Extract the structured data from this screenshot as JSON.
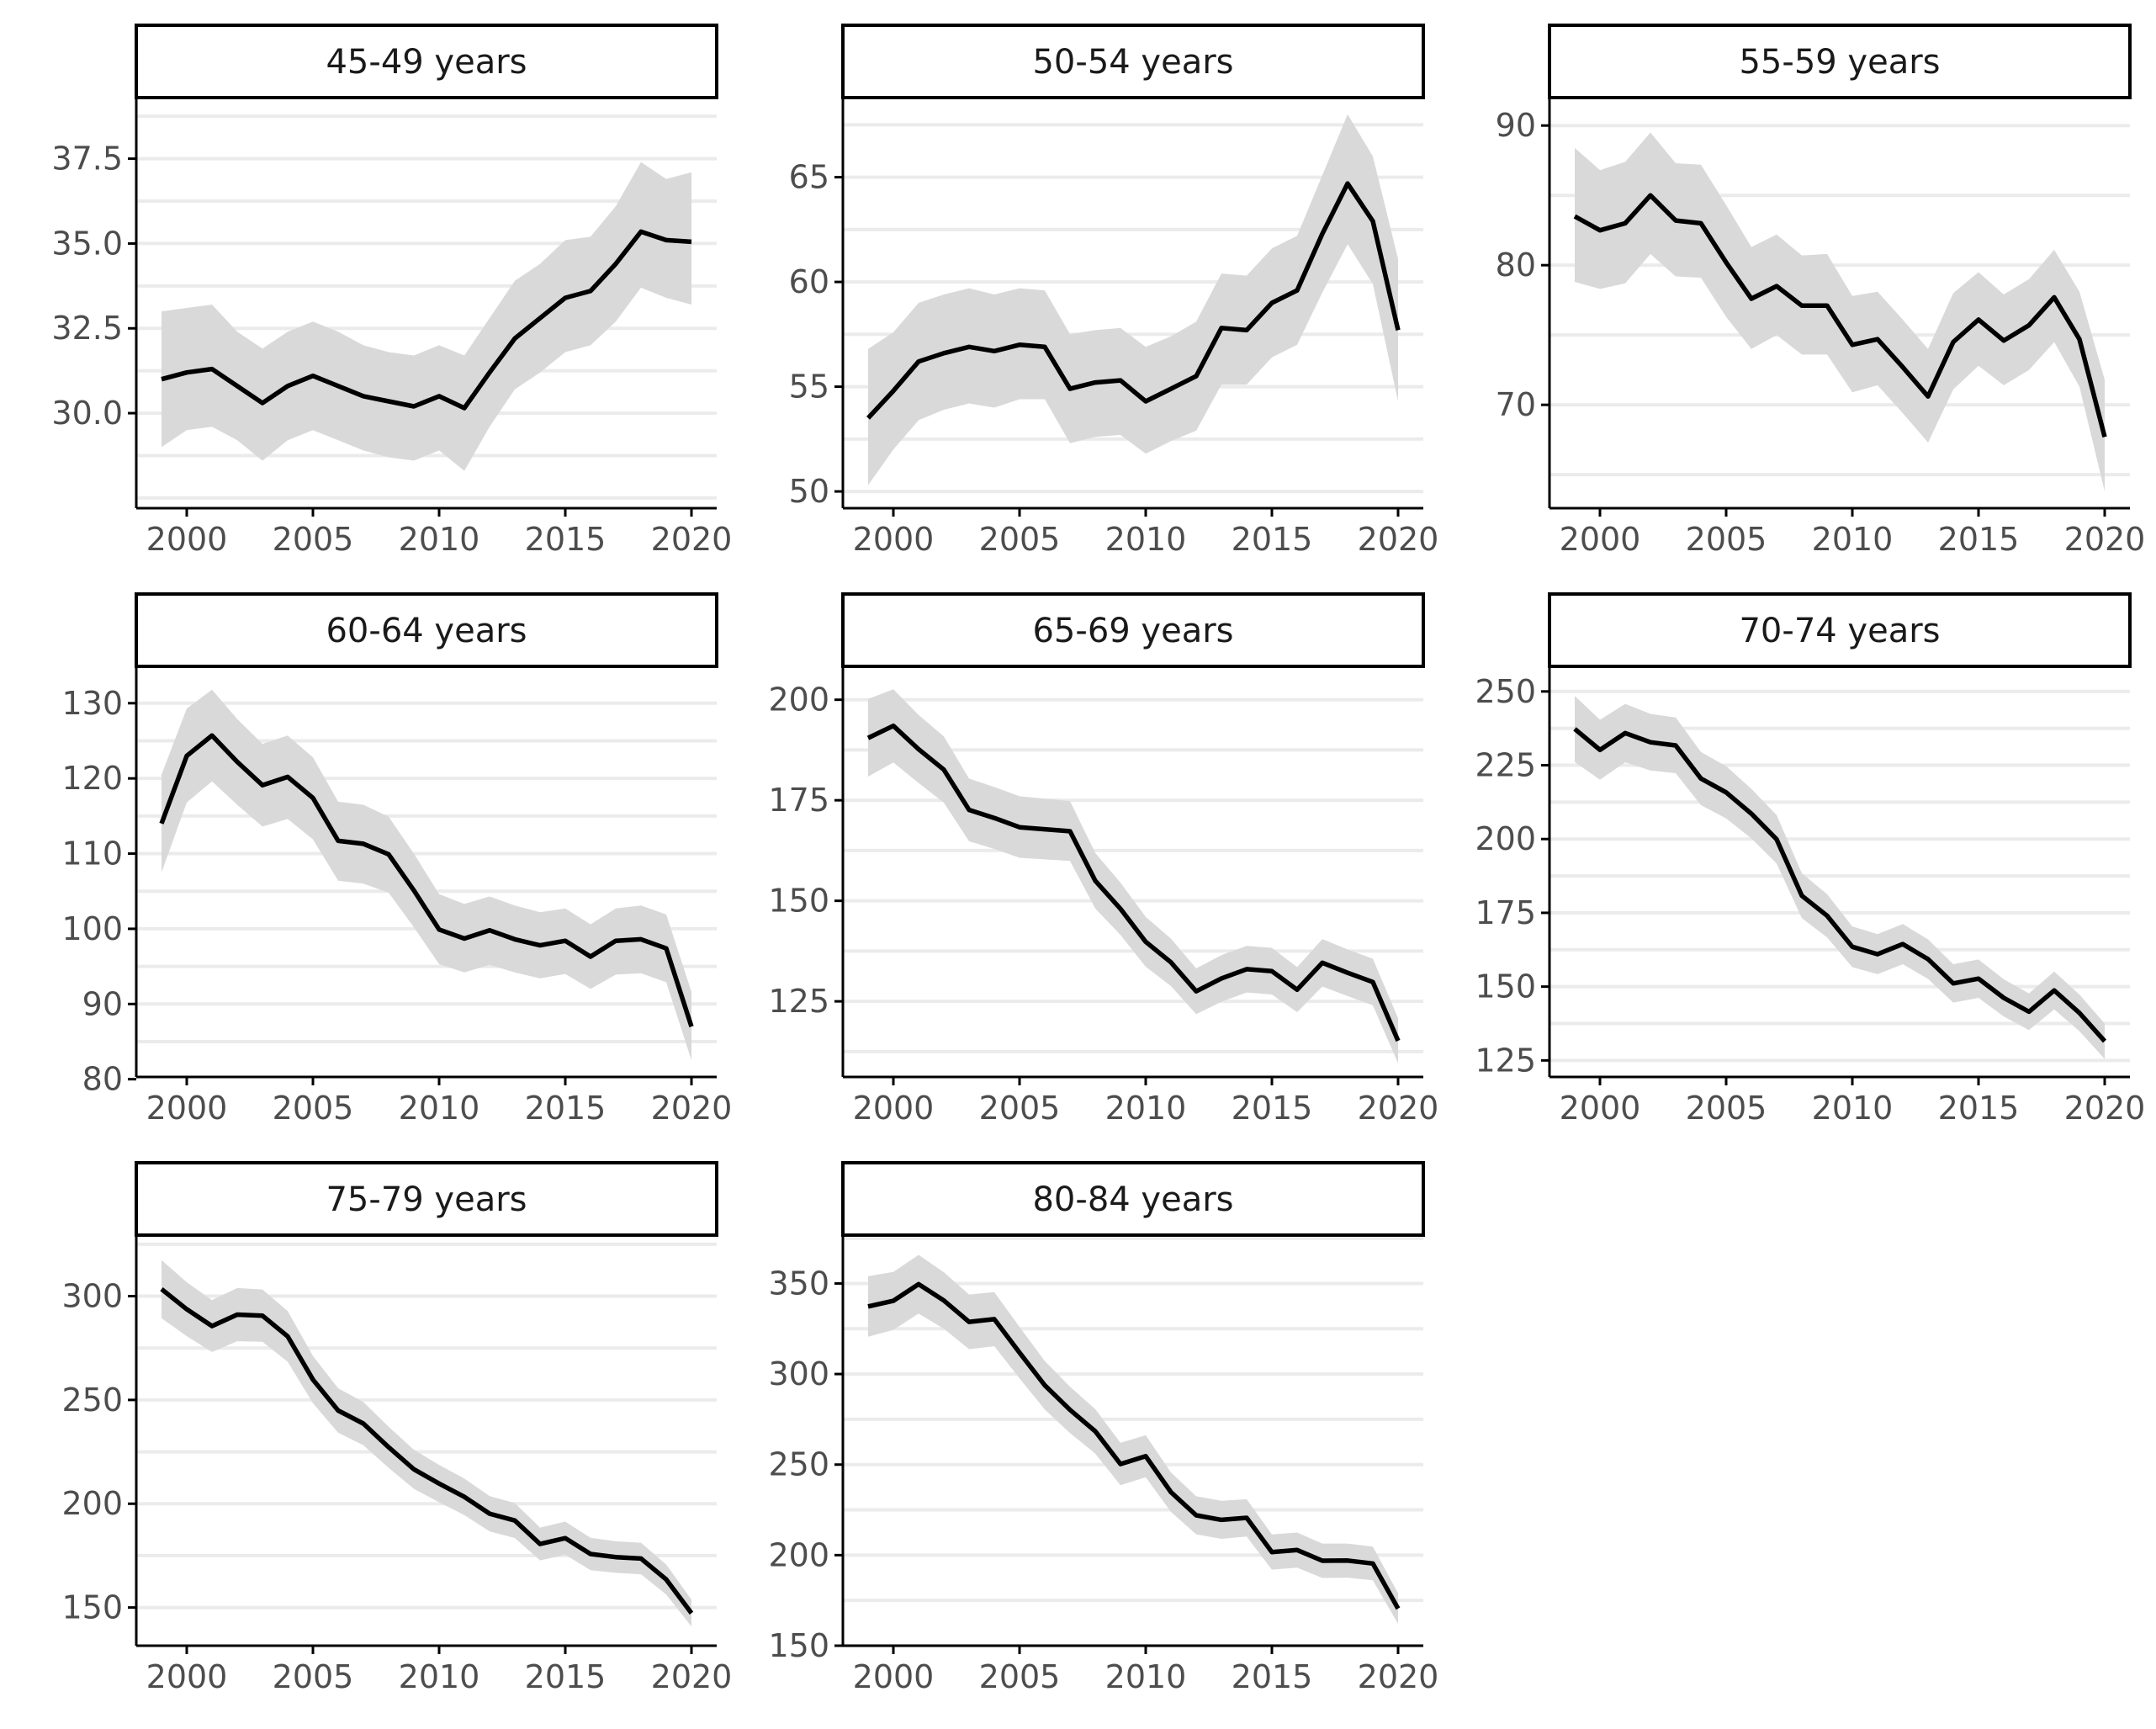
{
  "chart_data": [
    {
      "type": "line",
      "title": "45-49 years",
      "x": [
        1999,
        2000,
        2001,
        2002,
        2003,
        2004,
        2005,
        2006,
        2007,
        2008,
        2009,
        2010,
        2011,
        2012,
        2013,
        2014,
        2015,
        2016,
        2017,
        2018,
        2019,
        2020
      ],
      "values": [
        31.0,
        31.2,
        31.3,
        30.8,
        30.3,
        30.8,
        31.1,
        30.8,
        30.5,
        30.35,
        30.2,
        30.5,
        30.15,
        31.2,
        32.2,
        32.8,
        33.4,
        33.6,
        34.4,
        35.35,
        35.1,
        35.05
      ],
      "lower": [
        29.0,
        29.5,
        29.6,
        29.2,
        28.6,
        29.2,
        29.5,
        29.2,
        28.9,
        28.7,
        28.6,
        28.9,
        28.3,
        29.6,
        30.7,
        31.2,
        31.8,
        32.0,
        32.7,
        33.7,
        33.4,
        33.2
      ],
      "upper": [
        33.0,
        33.1,
        33.2,
        32.4,
        31.9,
        32.4,
        32.7,
        32.4,
        32.0,
        31.8,
        31.7,
        32.0,
        31.7,
        32.8,
        33.9,
        34.4,
        35.1,
        35.2,
        36.1,
        37.4,
        36.9,
        37.1
      ],
      "ylim": [
        27.2,
        39.3
      ],
      "yticks": [
        "30.0",
        "32.5",
        "35.0",
        "37.5"
      ],
      "ytick_values": [
        30.0,
        32.5,
        35.0,
        37.5
      ],
      "xticks": [
        "2000",
        "2005",
        "2010",
        "2015",
        "2020"
      ],
      "xtick_values": [
        2000,
        2005,
        2010,
        2015,
        2020
      ]
    },
    {
      "type": "line",
      "title": "50-54 years",
      "x": [
        1999,
        2000,
        2001,
        2002,
        2003,
        2004,
        2005,
        2006,
        2007,
        2008,
        2009,
        2010,
        2011,
        2012,
        2013,
        2014,
        2015,
        2016,
        2017,
        2018,
        2019,
        2020
      ],
      "values": [
        53.5,
        54.8,
        56.2,
        56.6,
        56.9,
        56.7,
        57.0,
        56.9,
        54.9,
        55.2,
        55.3,
        54.3,
        54.9,
        55.5,
        57.8,
        57.7,
        59.0,
        59.6,
        62.3,
        64.7,
        62.9,
        57.7
      ],
      "lower": [
        50.3,
        52.0,
        53.4,
        53.9,
        54.2,
        54.0,
        54.4,
        54.4,
        52.3,
        52.6,
        52.7,
        51.8,
        52.4,
        52.9,
        55.1,
        55.1,
        56.4,
        57.0,
        59.5,
        61.8,
        59.9,
        54.3
      ],
      "upper": [
        56.8,
        57.6,
        59.0,
        59.4,
        59.7,
        59.4,
        59.7,
        59.6,
        57.5,
        57.7,
        57.8,
        56.9,
        57.4,
        58.1,
        60.4,
        60.3,
        61.6,
        62.2,
        65.1,
        68.0,
        66.0,
        61.1
      ],
      "ylim": [
        49.2,
        68.8
      ],
      "yticks": [
        "50",
        "55",
        "60",
        "65"
      ],
      "ytick_values": [
        50,
        55,
        60,
        65
      ],
      "xticks": [
        "2000",
        "2005",
        "2010",
        "2015",
        "2020"
      ],
      "xtick_values": [
        2000,
        2005,
        2010,
        2015,
        2020
      ]
    },
    {
      "type": "line",
      "title": "55-59 years",
      "x": [
        1999,
        2000,
        2001,
        2002,
        2003,
        2004,
        2005,
        2006,
        2007,
        2008,
        2009,
        2010,
        2011,
        2012,
        2013,
        2014,
        2015,
        2016,
        2017,
        2018,
        2019,
        2020
      ],
      "values": [
        83.5,
        82.5,
        83.0,
        85.0,
        83.2,
        83.0,
        80.2,
        77.6,
        78.5,
        77.1,
        77.1,
        74.3,
        74.7,
        72.7,
        70.6,
        74.5,
        76.1,
        74.6,
        75.7,
        77.7,
        74.7,
        67.7
      ],
      "lower": [
        78.8,
        78.3,
        78.7,
        80.8,
        79.2,
        79.1,
        76.3,
        74.0,
        75.0,
        73.6,
        73.6,
        70.9,
        71.4,
        69.4,
        67.3,
        71.1,
        72.8,
        71.4,
        72.5,
        74.5,
        71.3,
        63.8
      ],
      "upper": [
        88.4,
        86.8,
        87.4,
        89.5,
        87.3,
        87.2,
        84.3,
        81.3,
        82.2,
        80.7,
        80.8,
        77.8,
        78.1,
        76.1,
        74.0,
        78.0,
        79.5,
        77.9,
        79.0,
        81.1,
        78.1,
        71.8
      ],
      "ylim": [
        62.6,
        92.0
      ],
      "yticks": [
        "70",
        "80",
        "90"
      ],
      "ytick_values": [
        70,
        80,
        90
      ],
      "xticks": [
        "2000",
        "2005",
        "2010",
        "2015",
        "2020"
      ],
      "xtick_values": [
        2000,
        2005,
        2010,
        2015,
        2020
      ]
    },
    {
      "type": "line",
      "title": "60-64 years",
      "x": [
        1999,
        2000,
        2001,
        2002,
        2003,
        2004,
        2005,
        2006,
        2007,
        2008,
        2009,
        2010,
        2011,
        2012,
        2013,
        2014,
        2015,
        2016,
        2017,
        2018,
        2019,
        2020
      ],
      "values": [
        114.0,
        123.0,
        125.7,
        122.2,
        119.1,
        120.2,
        117.4,
        111.7,
        111.3,
        109.9,
        105.1,
        99.9,
        98.7,
        99.8,
        98.6,
        97.8,
        98.4,
        96.3,
        98.4,
        98.6,
        97.4,
        87.0
      ],
      "lower": [
        107.5,
        116.8,
        119.6,
        116.5,
        113.6,
        114.6,
        111.9,
        106.4,
        106.0,
        104.8,
        100.2,
        95.3,
        94.2,
        95.2,
        94.2,
        93.4,
        94.0,
        92.0,
        93.9,
        94.1,
        92.9,
        82.5
      ],
      "upper": [
        120.5,
        129.3,
        131.8,
        127.9,
        124.6,
        125.7,
        122.8,
        116.9,
        116.5,
        114.9,
        110.0,
        104.6,
        103.3,
        104.3,
        103.1,
        102.2,
        102.7,
        100.6,
        102.7,
        103.1,
        101.9,
        91.6
      ],
      "ylim": [
        80.3,
        134.9
      ],
      "yticks": [
        "80",
        "90",
        "100",
        "110",
        "120",
        "130"
      ],
      "ytick_values": [
        80,
        90,
        100,
        110,
        120,
        130
      ],
      "xticks": [
        "2000",
        "2005",
        "2010",
        "2015",
        "2020"
      ],
      "xtick_values": [
        2000,
        2005,
        2010,
        2015,
        2020
      ]
    },
    {
      "type": "line",
      "title": "65-69 years",
      "x": [
        1999,
        2000,
        2001,
        2002,
        2003,
        2004,
        2005,
        2006,
        2007,
        2008,
        2009,
        2010,
        2011,
        2012,
        2013,
        2014,
        2015,
        2016,
        2017,
        2018,
        2019,
        2020
      ],
      "values": [
        190.5,
        193.5,
        187.7,
        182.6,
        172.6,
        170.6,
        168.3,
        167.8,
        167.3,
        155.0,
        148.0,
        139.8,
        134.7,
        127.5,
        130.7,
        133.0,
        132.5,
        127.9,
        134.6,
        132.1,
        129.8,
        115.2
      ],
      "lower": [
        180.9,
        184.4,
        179.3,
        174.4,
        164.8,
        162.9,
        160.7,
        160.3,
        159.9,
        148.1,
        141.5,
        133.6,
        128.8,
        121.8,
        124.9,
        127.2,
        126.7,
        122.3,
        128.7,
        126.3,
        124.0,
        109.6
      ],
      "upper": [
        200.2,
        202.6,
        196.2,
        190.9,
        180.4,
        178.3,
        176.0,
        175.4,
        174.8,
        161.9,
        154.5,
        146.0,
        140.6,
        133.2,
        136.5,
        138.8,
        138.3,
        133.5,
        140.5,
        137.9,
        135.6,
        120.8
      ],
      "ylim": [
        106.2,
        208.3
      ],
      "yticks": [
        "125",
        "150",
        "175",
        "200"
      ],
      "ytick_values": [
        125,
        150,
        175,
        200
      ],
      "xticks": [
        "2000",
        "2005",
        "2010",
        "2015",
        "2020"
      ],
      "xtick_values": [
        2000,
        2005,
        2010,
        2015,
        2020
      ]
    },
    {
      "type": "line",
      "title": "70-74 years",
      "x": [
        1999,
        2000,
        2001,
        2002,
        2003,
        2004,
        2005,
        2006,
        2007,
        2008,
        2009,
        2010,
        2011,
        2012,
        2013,
        2014,
        2015,
        2016,
        2017,
        2018,
        2019,
        2020
      ],
      "values": [
        237.3,
        230.2,
        235.9,
        232.8,
        231.7,
        220.5,
        215.8,
        208.6,
        199.9,
        180.8,
        174.0,
        163.5,
        161.0,
        164.4,
        159.3,
        151.1,
        152.7,
        146.2,
        141.5,
        148.7,
        141.1,
        131.5
      ],
      "lower": [
        226.1,
        220.1,
        226.0,
        223.2,
        222.3,
        211.5,
        207.0,
        200.2,
        191.7,
        173.2,
        166.7,
        156.6,
        154.2,
        157.6,
        152.6,
        144.6,
        146.2,
        139.9,
        135.3,
        142.3,
        134.9,
        125.5
      ],
      "upper": [
        248.5,
        240.4,
        245.8,
        242.4,
        241.2,
        229.5,
        224.7,
        217.0,
        208.1,
        188.4,
        181.3,
        170.4,
        167.8,
        171.2,
        166.0,
        157.6,
        159.2,
        152.5,
        147.7,
        155.1,
        147.3,
        137.5
      ],
      "ylim": [
        119.4,
        258.5
      ],
      "yticks": [
        "125",
        "150",
        "175",
        "200",
        "225",
        "250"
      ],
      "ytick_values": [
        125,
        150,
        175,
        200,
        225,
        250
      ],
      "xticks": [
        "2000",
        "2005",
        "2010",
        "2015",
        "2020"
      ],
      "xtick_values": [
        2000,
        2005,
        2010,
        2015,
        2020
      ]
    },
    {
      "type": "line",
      "title": "75-79 years",
      "x": [
        1999,
        2000,
        2001,
        2002,
        2003,
        2004,
        2005,
        2006,
        2007,
        2008,
        2009,
        2010,
        2011,
        2012,
        2013,
        2014,
        2015,
        2016,
        2017,
        2018,
        2019,
        2020
      ],
      "values": [
        303.4,
        293.7,
        285.6,
        291.1,
        290.6,
        280.6,
        259.8,
        244.9,
        238.6,
        227.2,
        216.6,
        209.7,
        203.3,
        195.2,
        191.9,
        180.6,
        183.4,
        175.8,
        174.3,
        173.6,
        163.5,
        147.3
      ],
      "lower": [
        289.4,
        280.7,
        273.1,
        278.3,
        278.0,
        268.4,
        248.4,
        234.2,
        228.2,
        217.3,
        207.2,
        200.7,
        194.5,
        186.7,
        183.5,
        172.7,
        175.4,
        168.0,
        166.7,
        166.0,
        156.3,
        140.8
      ],
      "upper": [
        317.4,
        306.7,
        298.1,
        303.9,
        303.2,
        292.8,
        271.2,
        255.6,
        249.0,
        237.1,
        226.0,
        218.7,
        212.1,
        203.7,
        200.3,
        188.5,
        191.4,
        183.6,
        181.9,
        181.2,
        170.7,
        153.8
      ],
      "ylim": [
        131.6,
        329.4
      ],
      "yticks": [
        "150",
        "200",
        "250",
        "300"
      ],
      "ytick_values": [
        150,
        200,
        250,
        300
      ],
      "xticks": [
        "2000",
        "2005",
        "2010",
        "2015",
        "2020"
      ],
      "xtick_values": [
        2000,
        2005,
        2010,
        2015,
        2020
      ]
    },
    {
      "type": "line",
      "title": "80-84 years",
      "x": [
        1999,
        2000,
        2001,
        2002,
        2003,
        2004,
        2005,
        2006,
        2007,
        2008,
        2009,
        2010,
        2011,
        2012,
        2013,
        2014,
        2015,
        2016,
        2017,
        2018,
        2019,
        2020
      ],
      "values": [
        337.3,
        340.4,
        349.6,
        340.6,
        328.8,
        330.3,
        311.8,
        293.8,
        280.2,
        268.4,
        250.3,
        254.6,
        234.8,
        222.0,
        219.5,
        220.6,
        201.7,
        202.8,
        196.9,
        197.0,
        195.4,
        170.5
      ],
      "lower": [
        320.6,
        324.4,
        333.4,
        325.0,
        313.7,
        315.4,
        297.6,
        280.4,
        267.4,
        256.1,
        238.6,
        243.0,
        223.9,
        211.5,
        209.0,
        210.3,
        192.0,
        193.1,
        187.4,
        187.6,
        186.1,
        162.1
      ],
      "upper": [
        354.0,
        356.4,
        365.8,
        356.2,
        343.9,
        345.2,
        326.0,
        307.2,
        293.0,
        280.7,
        262.0,
        266.2,
        245.7,
        232.5,
        230.0,
        230.9,
        211.4,
        212.5,
        206.4,
        206.4,
        204.7,
        178.9
      ],
      "ylim": [
        150.0,
        376.7
      ],
      "yticks": [
        "150",
        "200",
        "250",
        "300",
        "350"
      ],
      "ytick_values": [
        150,
        200,
        250,
        300,
        350
      ],
      "xticks": [
        "2000",
        "2005",
        "2010",
        "2015",
        "2020"
      ],
      "xtick_values": [
        2000,
        2005,
        2010,
        2015,
        2020
      ]
    }
  ],
  "colors": {
    "line": "#000000",
    "ribbon": "#d9d9d9",
    "grid": "#ebebeb",
    "strip_fill": "#ffffff",
    "strip_border": "#000000",
    "axis": "#000000",
    "tick_text": "#4d4d4d"
  }
}
